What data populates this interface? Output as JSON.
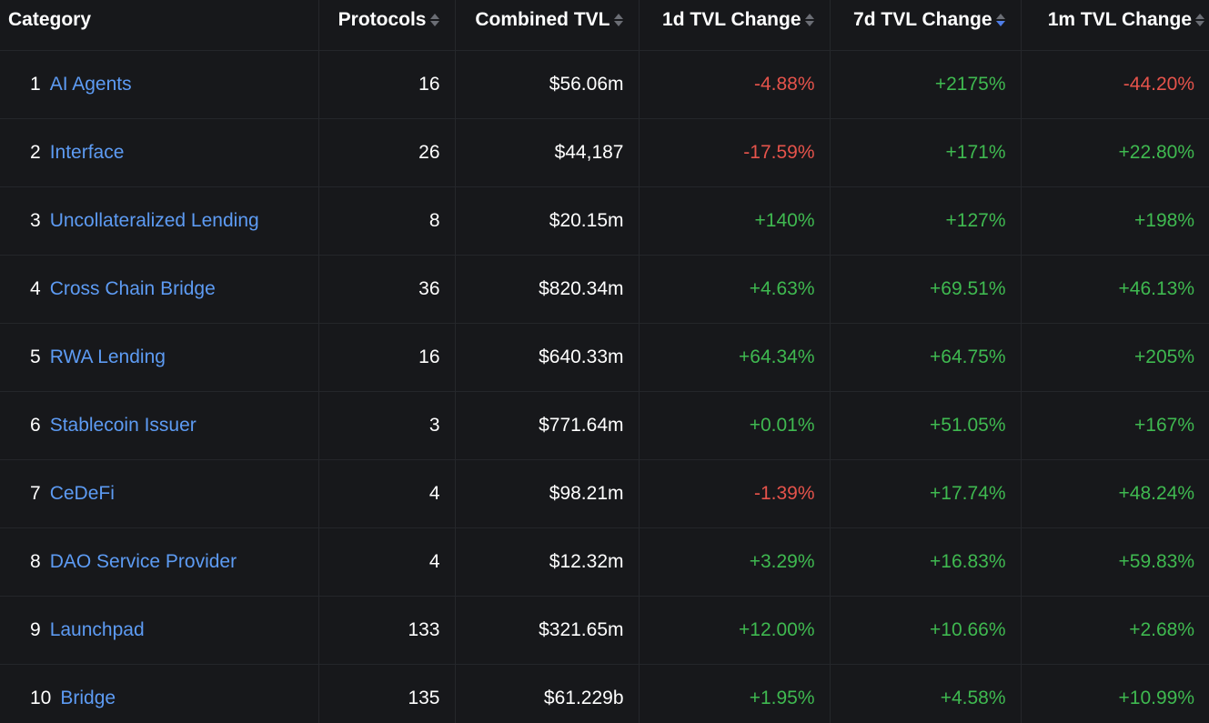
{
  "colors": {
    "background": "#17181b",
    "link": "#5d9bf3",
    "positive": "#3fb950",
    "negative": "#e5534b",
    "sort_active": "#4f7ee8"
  },
  "columns": [
    {
      "label": "Category",
      "sortable": false
    },
    {
      "label": "Protocols",
      "sortable": true,
      "sort": "none"
    },
    {
      "label": "Combined TVL",
      "sortable": true,
      "sort": "none"
    },
    {
      "label": "1d TVL Change",
      "sortable": true,
      "sort": "none"
    },
    {
      "label": "7d TVL Change",
      "sortable": true,
      "sort": "desc"
    },
    {
      "label": "1m TVL Change",
      "sortable": true,
      "sort": "none"
    }
  ],
  "rows": [
    {
      "rank": "1",
      "name": "AI Agents",
      "protocols": "16",
      "tvl": "$56.06m",
      "d1": "-4.88%",
      "d7": "+2175%",
      "m1": "-44.20%"
    },
    {
      "rank": "2",
      "name": "Interface",
      "protocols": "26",
      "tvl": "$44,187",
      "d1": "-17.59%",
      "d7": "+171%",
      "m1": "+22.80%"
    },
    {
      "rank": "3",
      "name": "Uncollateralized Lending",
      "protocols": "8",
      "tvl": "$20.15m",
      "d1": "+140%",
      "d7": "+127%",
      "m1": "+198%"
    },
    {
      "rank": "4",
      "name": "Cross Chain Bridge",
      "protocols": "36",
      "tvl": "$820.34m",
      "d1": "+4.63%",
      "d7": "+69.51%",
      "m1": "+46.13%"
    },
    {
      "rank": "5",
      "name": "RWA Lending",
      "protocols": "16",
      "tvl": "$640.33m",
      "d1": "+64.34%",
      "d7": "+64.75%",
      "m1": "+205%"
    },
    {
      "rank": "6",
      "name": "Stablecoin Issuer",
      "protocols": "3",
      "tvl": "$771.64m",
      "d1": "+0.01%",
      "d7": "+51.05%",
      "m1": "+167%"
    },
    {
      "rank": "7",
      "name": "CeDeFi",
      "protocols": "4",
      "tvl": "$98.21m",
      "d1": "-1.39%",
      "d7": "+17.74%",
      "m1": "+48.24%"
    },
    {
      "rank": "8",
      "name": "DAO Service Provider",
      "protocols": "4",
      "tvl": "$12.32m",
      "d1": "+3.29%",
      "d7": "+16.83%",
      "m1": "+59.83%"
    },
    {
      "rank": "9",
      "name": "Launchpad",
      "protocols": "133",
      "tvl": "$321.65m",
      "d1": "+12.00%",
      "d7": "+10.66%",
      "m1": "+2.68%"
    },
    {
      "rank": "10",
      "name": "Bridge",
      "protocols": "135",
      "tvl": "$61.229b",
      "d1": "+1.95%",
      "d7": "+4.58%",
      "m1": "+10.99%"
    }
  ]
}
